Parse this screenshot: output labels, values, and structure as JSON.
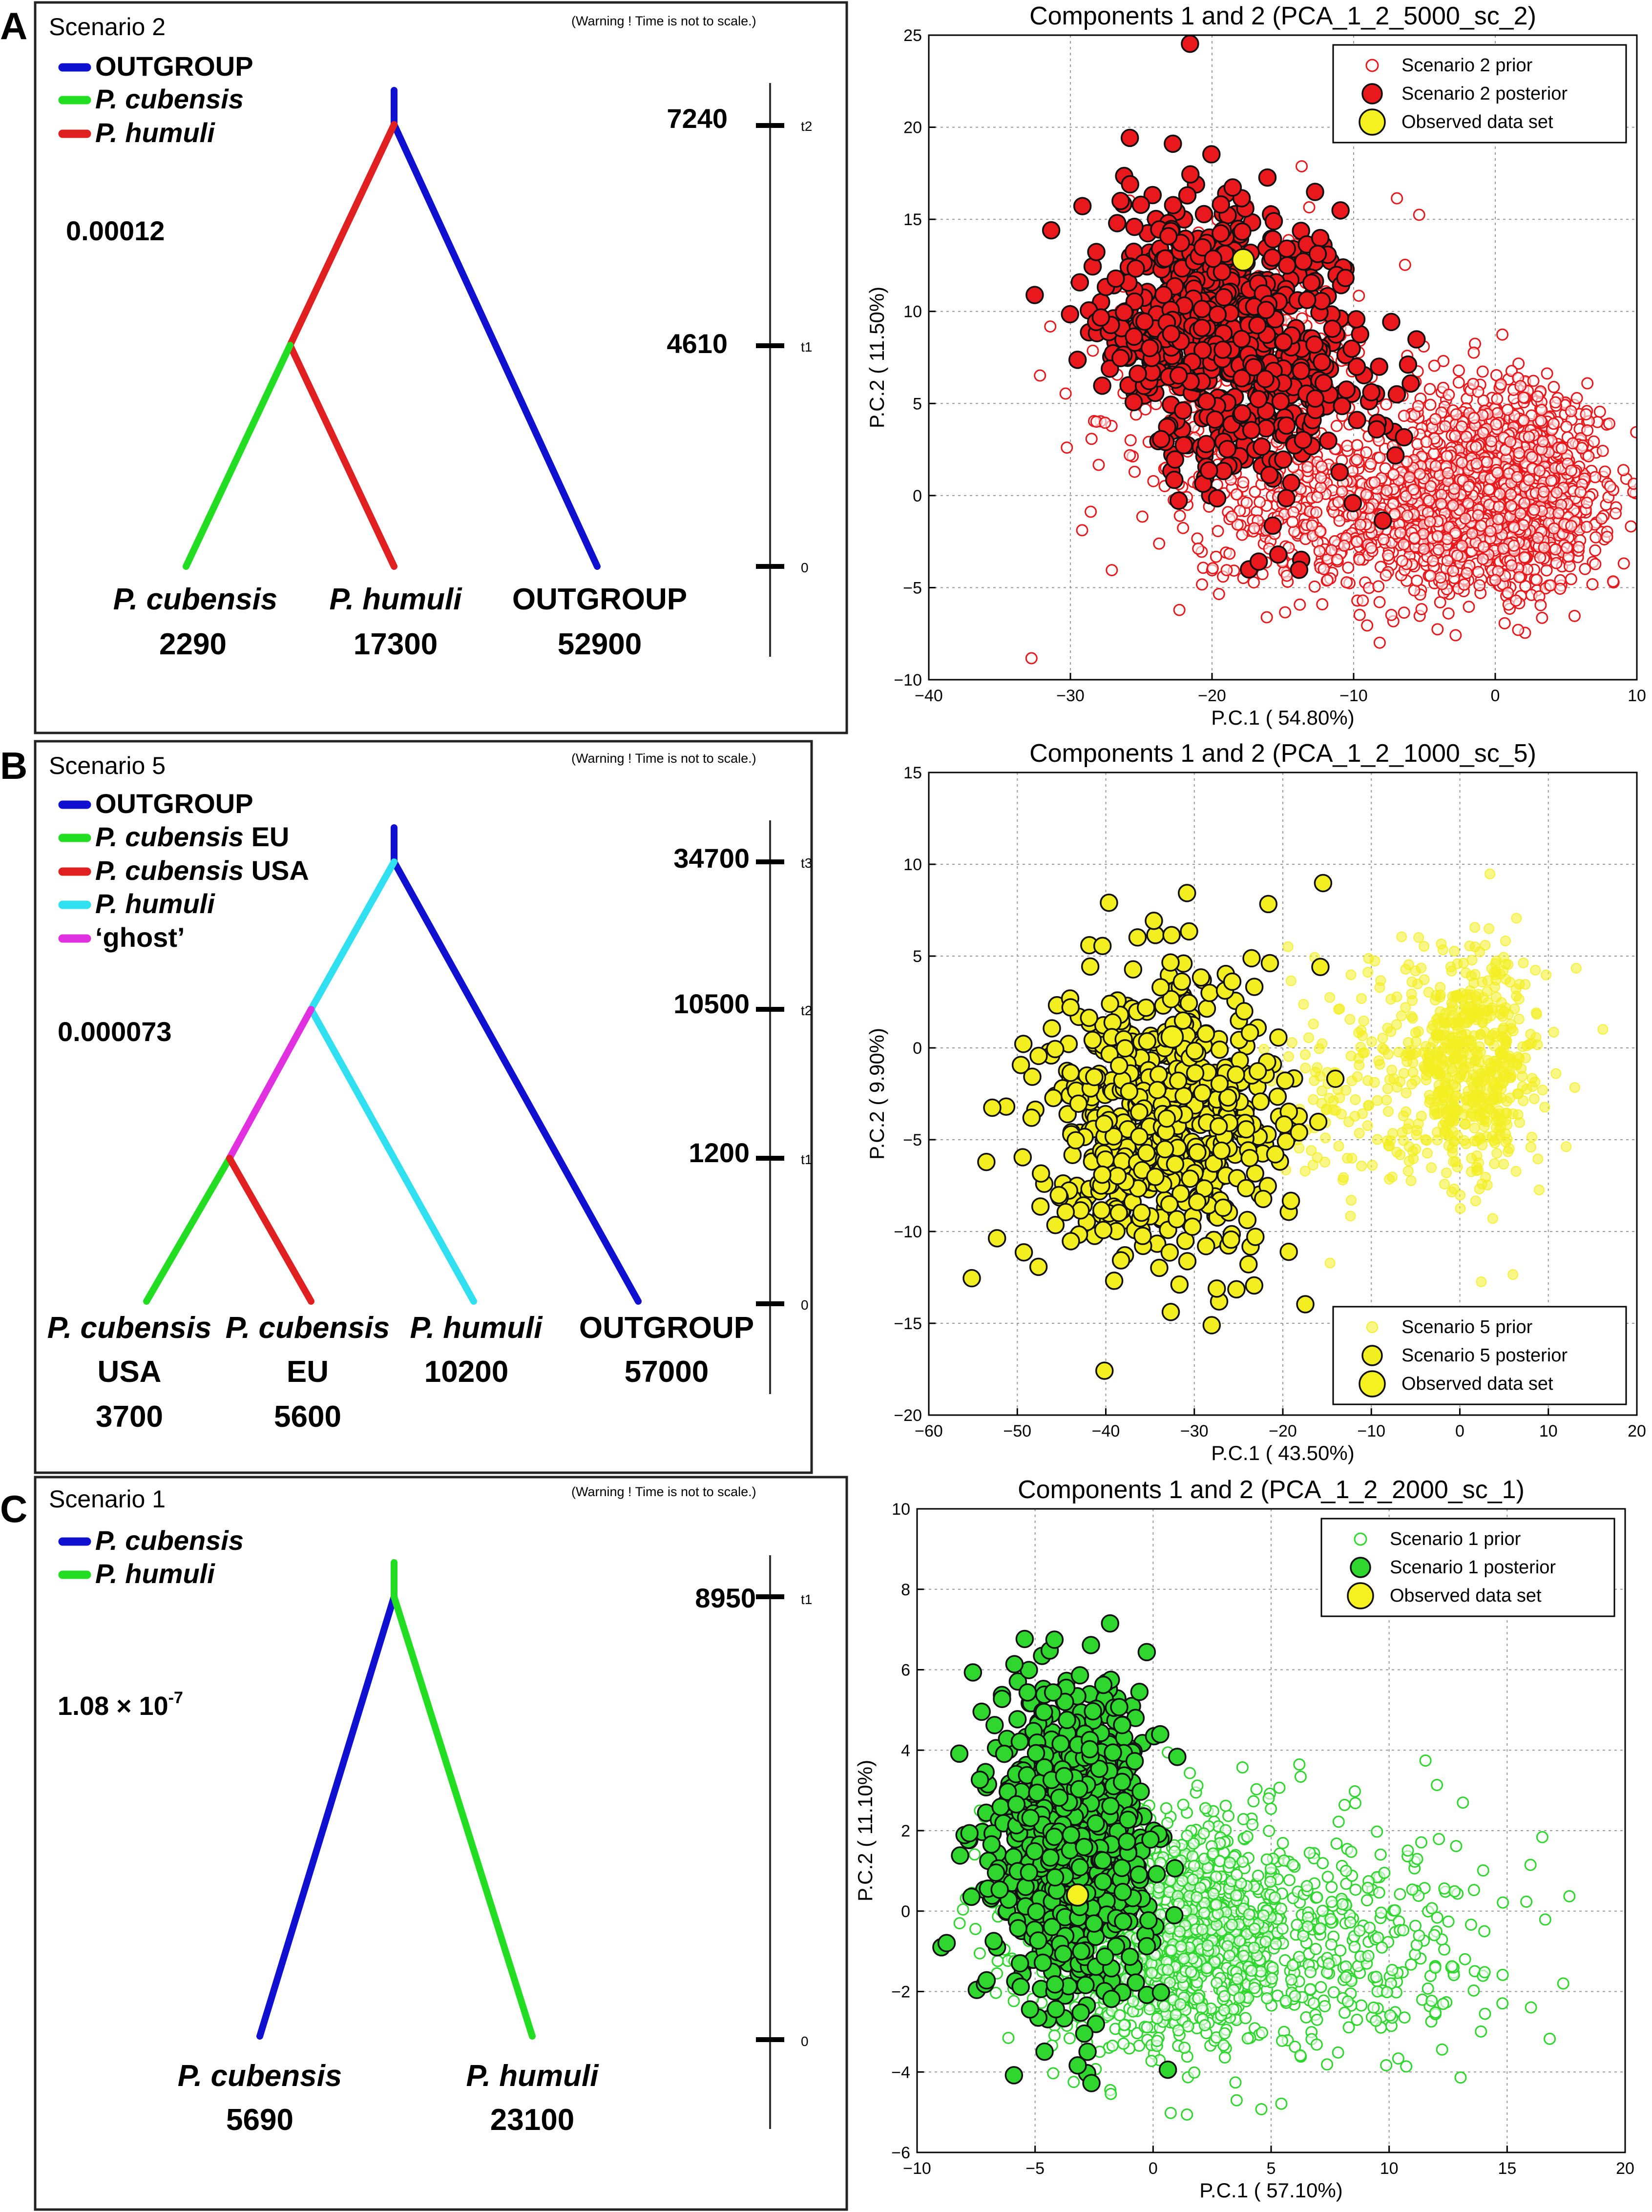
{
  "panels": [
    {
      "letter": "A",
      "scenario_label": "Scenario 2",
      "warning": "(Warning ! Time is not to scale.)",
      "rate": "0.00012",
      "legend": [
        {
          "italic": "",
          "rest": "OUTGROUP",
          "color": "#1010d0"
        },
        {
          "italic": "P. cubensis",
          "rest": "",
          "color": "#22dd22"
        },
        {
          "italic": "P. humuli",
          "rest": "",
          "color": "#e02020"
        }
      ],
      "times": [
        {
          "value": "7240",
          "tlabel": "t2"
        },
        {
          "value": "4610",
          "tlabel": "t1"
        },
        {
          "value": "",
          "tlabel": "0"
        }
      ],
      "leaves": [
        {
          "name_italic": "P. cubensis",
          "name_sub": "",
          "size": "2290"
        },
        {
          "name_italic": "P. humuli",
          "name_sub": "",
          "size": "17300"
        },
        {
          "name_italic": "",
          "name_sub": "OUTGROUP",
          "size": "52900"
        }
      ]
    },
    {
      "letter": "B",
      "scenario_label": "Scenario 5",
      "warning": "(Warning ! Time is not to scale.)",
      "rate": "0.000073",
      "legend": [
        {
          "italic": "",
          "rest": "OUTGROUP",
          "color": "#1010d0"
        },
        {
          "italic": "P. cubensis",
          "rest": " EU",
          "color": "#22dd22"
        },
        {
          "italic": "P. cubensis",
          "rest": " USA",
          "color": "#e02020"
        },
        {
          "italic": "P. humuli",
          "rest": "",
          "color": "#30e0f0"
        },
        {
          "italic": "",
          "rest": "‘ghost’",
          "color": "#e030e0"
        }
      ],
      "times": [
        {
          "value": "34700",
          "tlabel": "t3"
        },
        {
          "value": "10500",
          "tlabel": "t2"
        },
        {
          "value": "1200",
          "tlabel": "t1"
        },
        {
          "value": "",
          "tlabel": "0"
        }
      ],
      "leaves": [
        {
          "name_italic": "P. cubensis",
          "name_sub": "USA",
          "size": "3700"
        },
        {
          "name_italic": "P. cubensis",
          "name_sub": "EU",
          "size": "5600"
        },
        {
          "name_italic": "P. humuli",
          "name_sub": "",
          "size": "10200"
        },
        {
          "name_italic": "",
          "name_sub": "OUTGROUP",
          "size": "57000"
        }
      ]
    },
    {
      "letter": "C",
      "scenario_label": "Scenario 1",
      "warning": "(Warning ! Time is not to scale.)",
      "rate": "1.08 × 10",
      "rate_exp": "-7",
      "legend": [
        {
          "italic": "P. cubensis",
          "rest": "",
          "color": "#1010d0"
        },
        {
          "italic": "P. humuli",
          "rest": "",
          "color": "#22dd22"
        }
      ],
      "times": [
        {
          "value": "8950",
          "tlabel": "t1"
        },
        {
          "value": "",
          "tlabel": "0"
        }
      ],
      "leaves": [
        {
          "name_italic": "P. cubensis",
          "name_sub": "",
          "size": "5690"
        },
        {
          "name_italic": "P. humuli",
          "name_sub": "",
          "size": "23100"
        }
      ]
    }
  ],
  "chart_data": [
    {
      "type": "scatter",
      "title": "Components 1 and 2 (PCA_1_2_5000_sc_2)",
      "xlabel": "P.C.1 (   54.80%)",
      "ylabel": "P.C.2 (   11.50%)",
      "xlim": [
        -40,
        10
      ],
      "ylim": [
        -10,
        25
      ],
      "xticks": [
        -40,
        -30,
        -20,
        -10,
        0,
        10
      ],
      "yticks": [
        -10,
        -5,
        0,
        5,
        10,
        15,
        20,
        25
      ],
      "grid": true,
      "legend_position": "top-right",
      "color": "#e8181c",
      "legend": [
        "Scenario 2 prior",
        "Scenario 2 posterior",
        "Observed data set"
      ],
      "series": [
        {
          "name": "Scenario 2 prior",
          "style": "open",
          "n": 2400,
          "clusters": [
            {
              "center": [
                0.5,
                0.5
              ],
              "spread": [
                3.5,
                2.6
              ],
              "weight": 0.55
            },
            {
              "center": [
                -6,
                -1.5
              ],
              "spread": [
                5.5,
                2.0
              ],
              "weight": 0.25
            },
            {
              "center": [
                -17,
                5
              ],
              "spread": [
                5,
                4.5
              ],
              "weight": 0.2
            }
          ]
        },
        {
          "name": "Scenario 2 posterior",
          "style": "filled",
          "n": 700,
          "clusters": [
            {
              "center": [
                -19,
                8.5
              ],
              "spread": [
                5,
                3.5
              ],
              "weight": 1,
              "rot": -0.55
            }
          ]
        }
      ],
      "observed": [
        -17.8,
        12.8
      ]
    },
    {
      "type": "scatter",
      "title": "Components 1 and 2 (PCA_1_2_1000_sc_5)",
      "xlabel": "P.C.1 (   43.50%)",
      "ylabel": "P.C.2 (   9.90%)",
      "xlim": [
        -60,
        20
      ],
      "ylim": [
        -20,
        15
      ],
      "xticks": [
        -60,
        -50,
        -40,
        -30,
        -20,
        -10,
        0,
        10,
        20
      ],
      "yticks": [
        -20,
        -15,
        -10,
        -5,
        0,
        5,
        10,
        15
      ],
      "grid": true,
      "legend_position": "bottom-right",
      "color": "#f2ee20",
      "legend": [
        "Scenario 5 prior",
        "Scenario 5 posterior",
        "Observed data set"
      ],
      "series": [
        {
          "name": "Scenario 5 prior",
          "style": "faint",
          "n": 700,
          "clusters": [
            {
              "center": [
                1,
                -1
              ],
              "spread": [
                4,
                3.2
              ],
              "weight": 0.8
            },
            {
              "center": [
                -12,
                -2
              ],
              "spread": [
                5,
                3
              ],
              "weight": 0.2
            }
          ]
        },
        {
          "name": "Scenario 5 posterior",
          "style": "filled",
          "n": 650,
          "clusters": [
            {
              "center": [
                -34,
                -4
              ],
              "spread": [
                7,
                4
              ],
              "weight": 1
            }
          ]
        }
      ],
      "observed": [
        -32.5,
        0.6
      ]
    },
    {
      "type": "scatter",
      "title": "Components 1 and 2 (PCA_1_2_2000_sc_1)",
      "xlabel": "P.C.1 (   57.10%)",
      "ylabel": "P.C.2 (   11.10%)",
      "xlim": [
        -10,
        20
      ],
      "ylim": [
        -6,
        10
      ],
      "xticks": [
        -10,
        -5,
        0,
        5,
        10,
        15,
        20
      ],
      "yticks": [
        -6,
        -4,
        -2,
        0,
        2,
        4,
        6,
        8,
        10
      ],
      "grid": true,
      "legend_position": "top-right",
      "color": "#2ed62e",
      "legend": [
        "Scenario 1 prior",
        "Scenario 1 posterior",
        "Observed data set"
      ],
      "series": [
        {
          "name": "Scenario 1 prior",
          "style": "open",
          "n": 1600,
          "clusters": [
            {
              "center": [
                0,
                -0.5
              ],
              "spread": [
                2.8,
                1.4
              ],
              "weight": 0.7
            },
            {
              "center": [
                6,
                -0.8
              ],
              "spread": [
                4.5,
                1.6
              ],
              "weight": 0.3
            }
          ]
        },
        {
          "name": "Scenario 1 posterior",
          "style": "filled",
          "n": 800,
          "clusters": [
            {
              "center": [
                -3.5,
                1.8
              ],
              "spread": [
                1.7,
                2.0
              ],
              "weight": 1,
              "rot": 0.15
            }
          ]
        }
      ],
      "observed": [
        -3.2,
        0.4
      ]
    }
  ]
}
